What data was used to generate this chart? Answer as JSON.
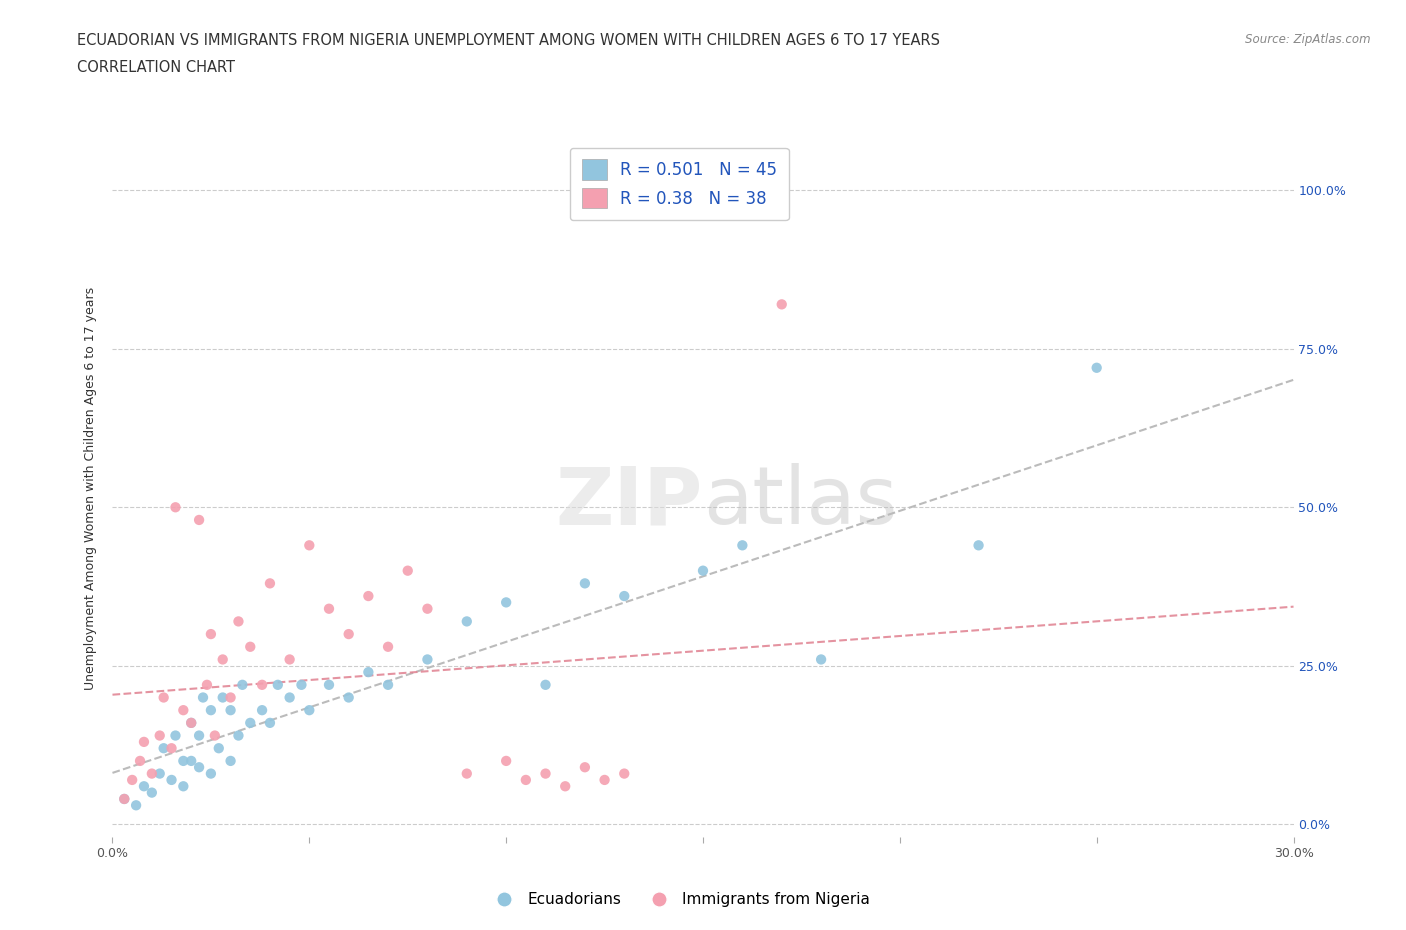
{
  "title_line1": "ECUADORIAN VS IMMIGRANTS FROM NIGERIA UNEMPLOYMENT AMONG WOMEN WITH CHILDREN AGES 6 TO 17 YEARS",
  "title_line2": "CORRELATION CHART",
  "source": "Source: ZipAtlas.com",
  "ylabel": "Unemployment Among Women with Children Ages 6 to 17 years",
  "xlim": [
    0.0,
    0.3
  ],
  "ylim": [
    -0.02,
    1.08
  ],
  "xticks": [
    0.0,
    0.05,
    0.1,
    0.15,
    0.2,
    0.25,
    0.3
  ],
  "xticklabels": [
    "0.0%",
    "",
    "",
    "",
    "",
    "",
    "30.0%"
  ],
  "yticks_right": [
    0.0,
    0.25,
    0.5,
    0.75,
    1.0
  ],
  "yticklabels_right": [
    "0.0%",
    "25.0%",
    "50.0%",
    "75.0%",
    "100.0%"
  ],
  "blue_color": "#92C5DE",
  "pink_color": "#F4A0B0",
  "R_blue": 0.501,
  "N_blue": 45,
  "R_pink": 0.38,
  "N_pink": 38,
  "legend_label_blue": "Ecuadorians",
  "legend_label_pink": "Immigrants from Nigeria",
  "blue_scatter_x": [
    0.003,
    0.006,
    0.008,
    0.01,
    0.012,
    0.013,
    0.015,
    0.016,
    0.018,
    0.018,
    0.02,
    0.02,
    0.022,
    0.022,
    0.023,
    0.025,
    0.025,
    0.027,
    0.028,
    0.03,
    0.03,
    0.032,
    0.033,
    0.035,
    0.038,
    0.04,
    0.042,
    0.045,
    0.048,
    0.05,
    0.055,
    0.06,
    0.065,
    0.07,
    0.08,
    0.09,
    0.1,
    0.11,
    0.12,
    0.13,
    0.15,
    0.16,
    0.18,
    0.22,
    0.25
  ],
  "blue_scatter_y": [
    0.04,
    0.03,
    0.06,
    0.05,
    0.08,
    0.12,
    0.07,
    0.14,
    0.06,
    0.1,
    0.1,
    0.16,
    0.09,
    0.14,
    0.2,
    0.08,
    0.18,
    0.12,
    0.2,
    0.1,
    0.18,
    0.14,
    0.22,
    0.16,
    0.18,
    0.16,
    0.22,
    0.2,
    0.22,
    0.18,
    0.22,
    0.2,
    0.24,
    0.22,
    0.26,
    0.32,
    0.35,
    0.22,
    0.38,
    0.36,
    0.4,
    0.44,
    0.26,
    0.44,
    0.72
  ],
  "pink_scatter_x": [
    0.003,
    0.005,
    0.007,
    0.008,
    0.01,
    0.012,
    0.013,
    0.015,
    0.016,
    0.018,
    0.02,
    0.022,
    0.024,
    0.025,
    0.026,
    0.028,
    0.03,
    0.032,
    0.035,
    0.038,
    0.04,
    0.045,
    0.05,
    0.055,
    0.06,
    0.065,
    0.07,
    0.075,
    0.08,
    0.09,
    0.1,
    0.105,
    0.11,
    0.115,
    0.12,
    0.125,
    0.13,
    0.17
  ],
  "pink_scatter_y": [
    0.04,
    0.07,
    0.1,
    0.13,
    0.08,
    0.14,
    0.2,
    0.12,
    0.5,
    0.18,
    0.16,
    0.48,
    0.22,
    0.3,
    0.14,
    0.26,
    0.2,
    0.32,
    0.28,
    0.22,
    0.38,
    0.26,
    0.44,
    0.34,
    0.3,
    0.36,
    0.28,
    0.4,
    0.34,
    0.08,
    0.1,
    0.07,
    0.08,
    0.06,
    0.09,
    0.07,
    0.08,
    0.82
  ],
  "title_fontsize": 11,
  "tick_fontsize": 9,
  "axis_label_fontsize": 9
}
